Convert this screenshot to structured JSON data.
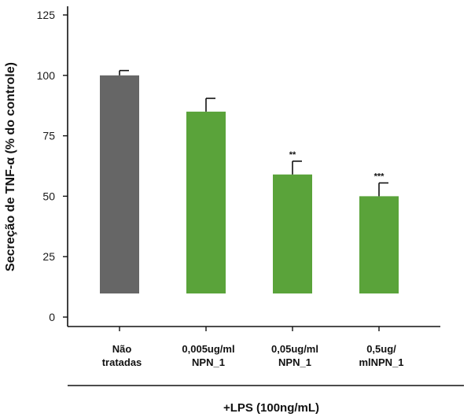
{
  "chart_data": {
    "type": "bar",
    "ylabel": "Secreção de TNF-α (% do controle)",
    "ylim": [
      0,
      125
    ],
    "yticks": [
      "0",
      "25",
      "50",
      "75",
      "100",
      "125"
    ],
    "categories": [
      [
        "Não",
        "tratadas"
      ],
      [
        "0,005ug/ml",
        "NPN_1"
      ],
      [
        "0,05ug/ml",
        "NPN_1"
      ],
      [
        "0,5ug/",
        "mlNPN_1"
      ]
    ],
    "values": [
      100,
      85,
      59,
      50
    ],
    "errors": [
      2,
      5.5,
      5.5,
      5.5
    ],
    "significance": [
      "",
      "",
      "**",
      "***"
    ],
    "colors": [
      "#666666",
      "#5aa33a",
      "#5aa33a",
      "#5aa33a"
    ],
    "treatment_label": "+LPS (100ng/mL)",
    "grid": false
  }
}
